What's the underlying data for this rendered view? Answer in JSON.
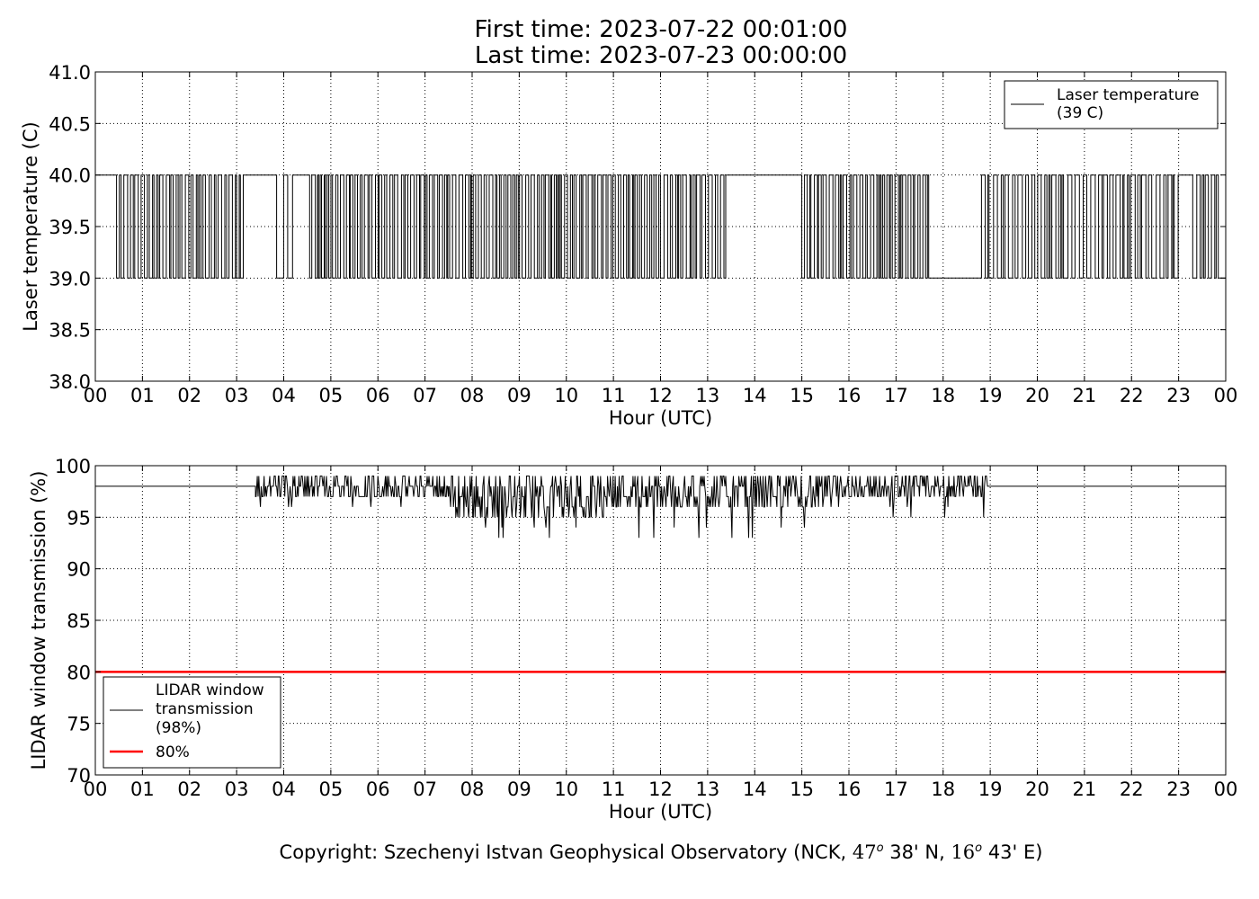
{
  "figure": {
    "title_line1": "First time: 2023-07-22 00:01:00",
    "title_line2": "Last time: 2023-07-23 00:00:00",
    "copyright": {
      "prefix": "Copyright: Szechenyi Istvan Geophysical Observatory (NCK, ",
      "lat_deg": "47",
      "lat_min": " 38' N, ",
      "lon_deg": "16",
      "lon_min": " 43' E)",
      "degree_mark": "o"
    }
  },
  "chart_data": [
    {
      "type": "line",
      "xlabel": "Hour (UTC)",
      "ylabel": "Laser temperature (C)",
      "xlim": [
        0,
        24
      ],
      "ylim": [
        38.0,
        41.0
      ],
      "x_ticks": [
        "00",
        "01",
        "02",
        "03",
        "04",
        "05",
        "06",
        "07",
        "08",
        "09",
        "10",
        "11",
        "12",
        "13",
        "14",
        "15",
        "16",
        "17",
        "18",
        "19",
        "20",
        "21",
        "22",
        "23",
        "00"
      ],
      "y_ticks": [
        "38.0",
        "38.5",
        "39.0",
        "39.5",
        "40.0",
        "40.5",
        "41.0"
      ],
      "grid": true,
      "legend_position": "top-right",
      "series": [
        {
          "name": "Laser temperature\n(39 C)",
          "color": "#000000",
          "values_description_note": null,
          "step_segments": [
            {
              "from": 0.0,
              "to": 0.45,
              "value": 40.0
            },
            {
              "from": 0.45,
              "to": 3.15,
              "alternating": [
                39.0,
                40.0
              ],
              "period": 0.05
            },
            {
              "from": 3.15,
              "to": 3.85,
              "value": 40.0
            },
            {
              "from": 3.85,
              "to": 4.25,
              "alternating": [
                39.0,
                40.0
              ],
              "period": 0.12
            },
            {
              "from": 4.25,
              "to": 4.55,
              "value": 40.0
            },
            {
              "from": 4.55,
              "to": 13.4,
              "alternating": [
                39.0,
                40.0
              ],
              "period": 0.05
            },
            {
              "from": 13.4,
              "to": 15.0,
              "value": 40.0
            },
            {
              "from": 15.0,
              "to": 17.7,
              "alternating": [
                39.0,
                40.0
              ],
              "period": 0.05
            },
            {
              "from": 17.7,
              "to": 18.75,
              "value": 39.0
            },
            {
              "from": 18.75,
              "to": 23.0,
              "alternating": [
                39.0,
                40.0
              ],
              "period": 0.06
            },
            {
              "from": 23.0,
              "to": 23.3,
              "value": 40.0
            },
            {
              "from": 23.3,
              "to": 23.85,
              "alternating": [
                39.0,
                40.0
              ],
              "period": 0.06
            },
            {
              "from": 23.85,
              "to": 24.0,
              "value": 39.0
            }
          ]
        }
      ]
    },
    {
      "type": "line",
      "xlabel": "Hour (UTC)",
      "ylabel": "LIDAR window transmission (%)",
      "xlim": [
        0,
        24
      ],
      "ylim": [
        70,
        100
      ],
      "x_ticks": [
        "00",
        "01",
        "02",
        "03",
        "04",
        "05",
        "06",
        "07",
        "08",
        "09",
        "10",
        "11",
        "12",
        "13",
        "14",
        "15",
        "16",
        "17",
        "18",
        "19",
        "20",
        "21",
        "22",
        "23",
        "00"
      ],
      "y_ticks": [
        "70",
        "75",
        "80",
        "85",
        "90",
        "95",
        "100"
      ],
      "grid": true,
      "legend_position": "bottom-left",
      "series": [
        {
          "name": "LIDAR window\ntransmission\n(98%)",
          "color": "#000000",
          "baseline": 98,
          "noisy_segments": [
            {
              "from": 3.4,
              "to": 7.5,
              "values": [
                97,
                98,
                99
              ],
              "min": 96
            },
            {
              "from": 7.5,
              "to": 10.8,
              "values": [
                95,
                96,
                97,
                98,
                99
              ],
              "min": 93
            },
            {
              "from": 10.8,
              "to": 15.5,
              "values": [
                96,
                97,
                98,
                99
              ],
              "min": 93
            },
            {
              "from": 15.5,
              "to": 18.95,
              "values": [
                97,
                98,
                99
              ],
              "min": 95
            }
          ]
        },
        {
          "name": "80%",
          "color": "#ff0000",
          "constant": 80
        }
      ]
    }
  ]
}
